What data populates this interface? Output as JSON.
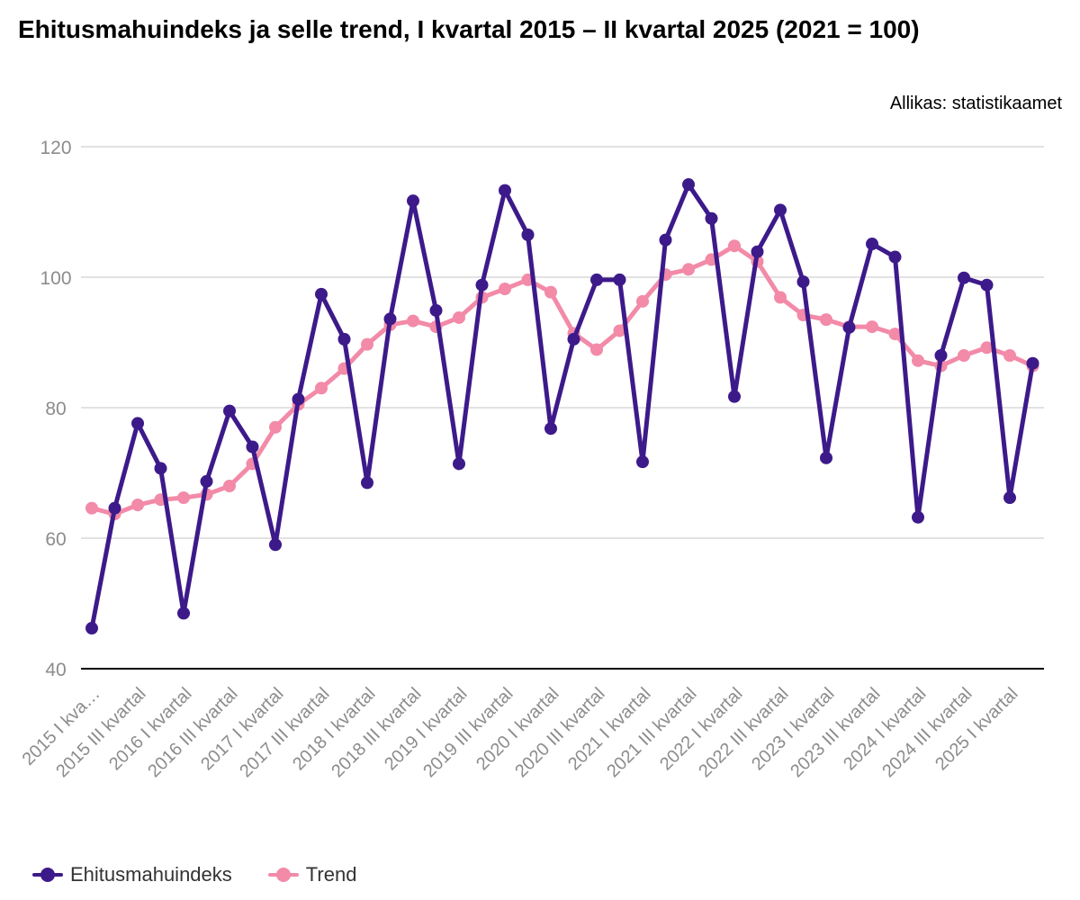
{
  "header": {
    "title": "Ehitusmahuindeks ja selle trend, I kvartal 2015 – II kvartal 2025 (2021 = 100)",
    "source": "Allikas: statistikaamet"
  },
  "colors": {
    "index_series": "#3d1a8a",
    "trend_series": "#f28aa8",
    "grid": "#d9d9d9",
    "axis": "#000000",
    "tick_label": "#8c8c8c"
  },
  "chart_data": {
    "type": "line",
    "title": "Ehitusmahuindeks ja selle trend, I kvartal 2015 – II kvartal 2025 (2021 = 100)",
    "xlabel": "",
    "ylabel": "",
    "ylim": [
      40,
      120
    ],
    "yticks": [
      40,
      60,
      80,
      100,
      120
    ],
    "grid": true,
    "legend_position": "bottom-left",
    "x_tick_labels": [
      "2015 I kva…",
      "2015 III kvartal",
      "2016 I kvartal",
      "2016 III kvartal",
      "2017 I kvartal",
      "2017 III kvartal",
      "2018 I kvartal",
      "2018 III kvartal",
      "2019 I kvartal",
      "2019 III kvartal",
      "2020 I kvartal",
      "2020 III kvartal",
      "2021 I kvartal",
      "2021 III kvartal",
      "2022 I kvartal",
      "2022 III kvartal",
      "2023 I kvartal",
      "2023 III kvartal",
      "2024 I kvartal",
      "2024 III kvartal",
      "2025 I kvartal"
    ],
    "categories": [
      "2015 I kvartal",
      "2015 II kvartal",
      "2015 III kvartal",
      "2015 IV kvartal",
      "2016 I kvartal",
      "2016 II kvartal",
      "2016 III kvartal",
      "2016 IV kvartal",
      "2017 I kvartal",
      "2017 II kvartal",
      "2017 III kvartal",
      "2017 IV kvartal",
      "2018 I kvartal",
      "2018 II kvartal",
      "2018 III kvartal",
      "2018 IV kvartal",
      "2019 I kvartal",
      "2019 II kvartal",
      "2019 III kvartal",
      "2019 IV kvartal",
      "2020 I kvartal",
      "2020 II kvartal",
      "2020 III kvartal",
      "2020 IV kvartal",
      "2021 I kvartal",
      "2021 II kvartal",
      "2021 III kvartal",
      "2021 IV kvartal",
      "2022 I kvartal",
      "2022 II kvartal",
      "2022 III kvartal",
      "2022 IV kvartal",
      "2023 I kvartal",
      "2023 II kvartal",
      "2023 III kvartal",
      "2023 IV kvartal",
      "2024 I kvartal",
      "2024 II kvartal",
      "2024 III kvartal",
      "2024 IV kvartal",
      "2025 I kvartal",
      "2025 II kvartal"
    ],
    "series": [
      {
        "name": "Ehitusmahuindeks",
        "color": "#3d1a8a",
        "values": [
          46.2,
          64.6,
          77.6,
          70.7,
          48.5,
          68.7,
          79.5,
          74.0,
          59.0,
          81.3,
          97.4,
          90.5,
          68.5,
          93.6,
          111.7,
          94.9,
          71.4,
          98.8,
          113.3,
          106.5,
          76.8,
          90.5,
          99.6,
          99.6,
          71.7,
          105.7,
          114.2,
          109.0,
          81.7,
          103.9,
          110.3,
          99.3,
          72.3,
          92.3,
          105.1,
          103.1,
          63.2,
          88.0,
          99.9,
          98.8,
          66.2,
          86.8
        ]
      },
      {
        "name": "Trend",
        "color": "#f28aa8",
        "values": [
          64.6,
          63.7,
          65.1,
          65.9,
          66.2,
          66.7,
          68.0,
          71.4,
          77.0,
          80.5,
          83.0,
          86.0,
          89.7,
          92.7,
          93.3,
          92.4,
          93.8,
          96.9,
          98.2,
          99.6,
          97.7,
          91.4,
          88.9,
          91.8,
          96.3,
          100.4,
          101.2,
          102.7,
          104.8,
          102.4,
          96.9,
          94.2,
          93.5,
          92.4,
          92.4,
          91.3,
          87.2,
          86.4,
          88.0,
          89.2,
          88.0,
          86.4
        ]
      }
    ]
  }
}
